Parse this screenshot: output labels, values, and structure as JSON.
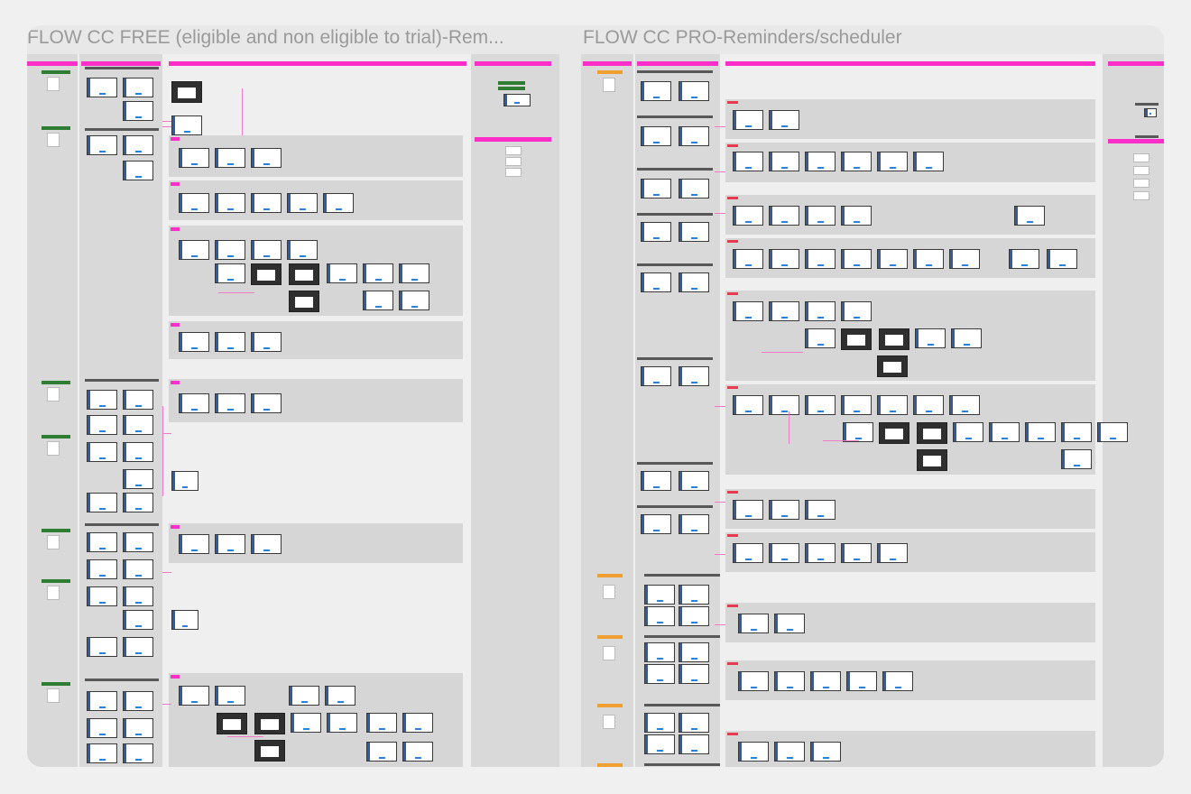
{
  "frames": [
    {
      "title": "FLOW CC FREE (eligible and non eligible to trial)-Rem..."
    },
    {
      "title": "FLOW CC PRO-Reminders/scheduler"
    }
  ]
}
